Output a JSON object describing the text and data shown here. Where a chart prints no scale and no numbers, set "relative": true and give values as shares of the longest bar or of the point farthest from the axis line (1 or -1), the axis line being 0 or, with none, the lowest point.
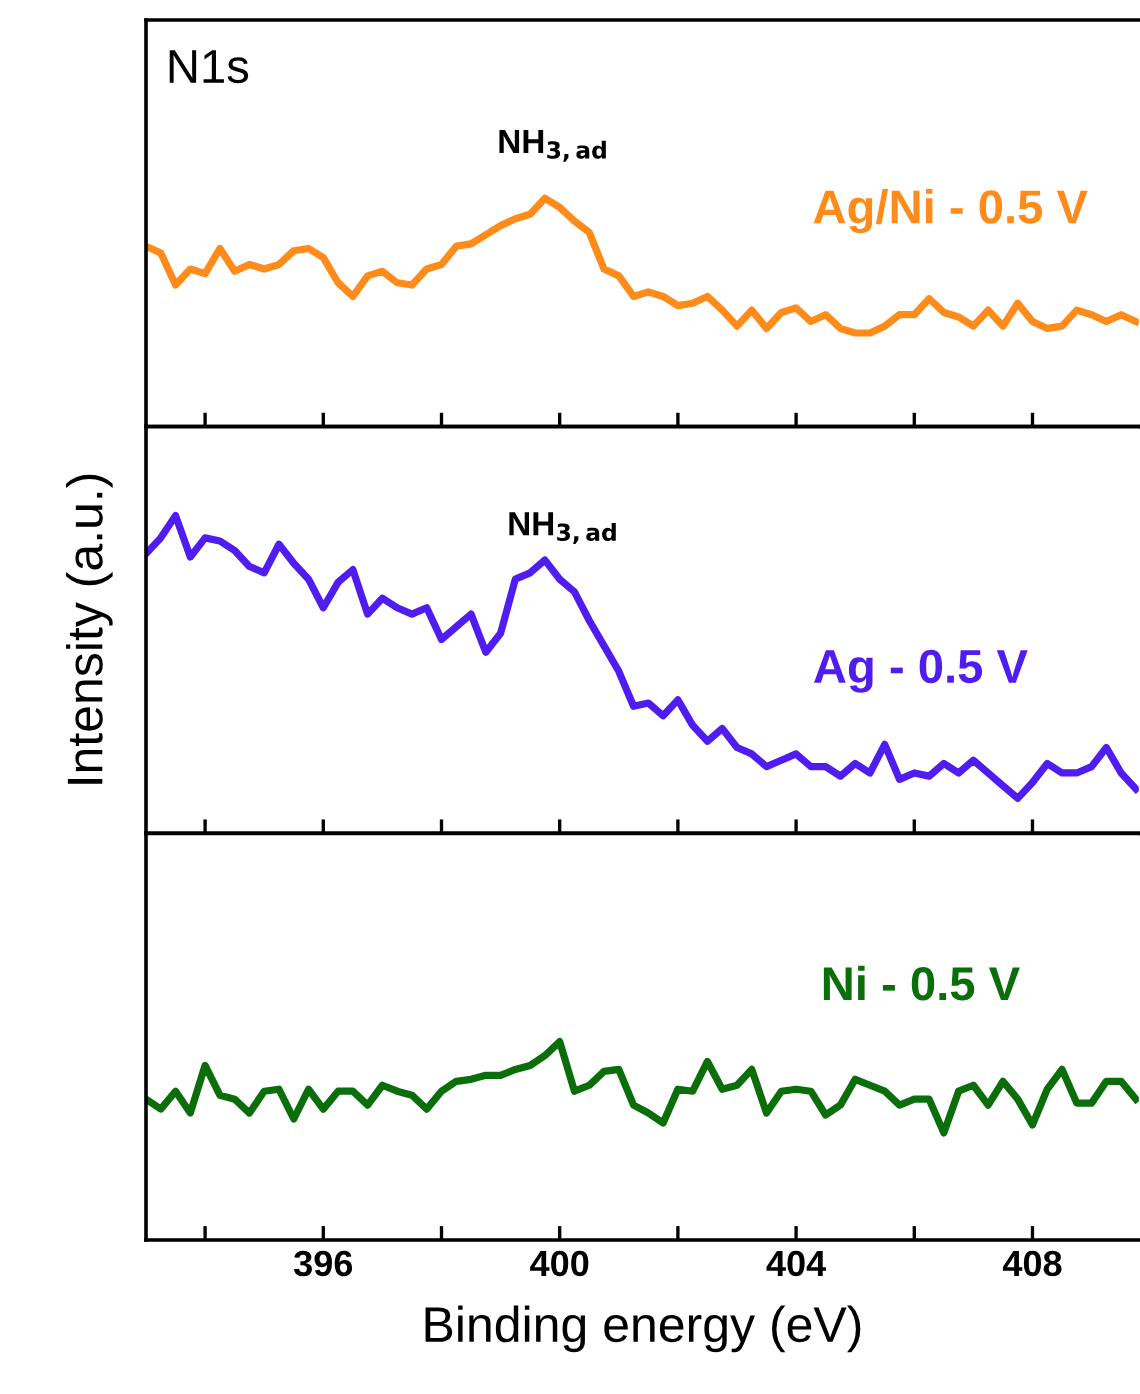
{
  "chart_data": [
    {
      "type": "line",
      "relative": true,
      "tick_labels": false,
      "xlim": [
        393,
        409.8
      ],
      "xticks": [
        {
          "value": 394,
          "label": null
        },
        {
          "value": 396,
          "label": null
        },
        {
          "value": 398,
          "label": null
        },
        {
          "value": 400,
          "label": null
        },
        {
          "value": 402,
          "label": null
        },
        {
          "value": 404,
          "label": null
        },
        {
          "value": 406,
          "label": null
        },
        {
          "value": 408,
          "label": null
        }
      ],
      "annotations": [
        "N1s",
        "NH$_{3,ad}$"
      ],
      "series": [
        {
          "name": "Ag/Ni - 0.5 V",
          "color": "#ff8c1a",
          "x": [
            393,
            393.25,
            393.5,
            393.75,
            394,
            394.25,
            394.5,
            394.75,
            395,
            395.25,
            395.5,
            395.75,
            396,
            396.25,
            396.5,
            396.75,
            397,
            397.25,
            397.5,
            397.75,
            398,
            398.25,
            398.5,
            398.75,
            399,
            399.25,
            399.5,
            399.75,
            400,
            400.25,
            400.5,
            400.75,
            401,
            401.25,
            401.5,
            401.75,
            402,
            402.25,
            402.5,
            402.75,
            403,
            403.25,
            403.5,
            403.75,
            404,
            404.25,
            404.5,
            404.75,
            405,
            405.25,
            405.5,
            405.75,
            406,
            406.25,
            406.5,
            406.75,
            407,
            407.25,
            407.5,
            407.75,
            408,
            408.25,
            408.5,
            408.75,
            409,
            409.25,
            409.5,
            409.75
          ],
          "values": [
            0.79,
            0.76,
            0.62,
            0.69,
            0.67,
            0.78,
            0.68,
            0.71,
            0.69,
            0.71,
            0.77,
            0.78,
            0.74,
            0.63,
            0.57,
            0.66,
            0.68,
            0.63,
            0.62,
            0.69,
            0.71,
            0.79,
            0.8,
            0.84,
            0.88,
            0.91,
            0.93,
            1.0,
            0.96,
            0.9,
            0.85,
            0.69,
            0.66,
            0.57,
            0.59,
            0.57,
            0.53,
            0.54,
            0.57,
            0.51,
            0.44,
            0.51,
            0.43,
            0.5,
            0.52,
            0.46,
            0.49,
            0.43,
            0.41,
            0.41,
            0.44,
            0.49,
            0.49,
            0.56,
            0.5,
            0.48,
            0.44,
            0.51,
            0.44,
            0.54,
            0.46,
            0.43,
            0.44,
            0.51,
            0.49,
            0.46,
            0.49,
            0.46
          ]
        }
      ]
    },
    {
      "type": "line",
      "relative": true,
      "tick_labels": false,
      "xlim": [
        393,
        409.8
      ],
      "xticks": [
        {
          "value": 394,
          "label": null
        },
        {
          "value": 396,
          "label": null
        },
        {
          "value": 398,
          "label": null
        },
        {
          "value": 400,
          "label": null
        },
        {
          "value": 402,
          "label": null
        },
        {
          "value": 404,
          "label": null
        },
        {
          "value": 406,
          "label": null
        },
        {
          "value": 408,
          "label": null
        }
      ],
      "ylabel": "Intensity (a.u.)",
      "annotations": [
        "NH$_{3,ad}$"
      ],
      "series": [
        {
          "name": "Ag - 0.5 V",
          "color": "#4f1df0",
          "x": [
            393,
            393.25,
            393.5,
            393.75,
            394,
            394.25,
            394.5,
            394.75,
            395,
            395.25,
            395.5,
            395.75,
            396,
            396.25,
            396.5,
            396.75,
            397,
            397.25,
            397.5,
            397.75,
            398,
            398.25,
            398.5,
            398.75,
            399,
            399.25,
            399.5,
            399.75,
            400,
            400.25,
            400.5,
            400.75,
            401,
            401.25,
            401.5,
            401.75,
            402,
            402.25,
            402.5,
            402.75,
            403,
            403.25,
            403.5,
            403.75,
            404,
            404.25,
            404.5,
            404.75,
            405,
            405.25,
            405.5,
            405.75,
            406,
            406.25,
            406.5,
            406.75,
            407,
            407.25,
            407.5,
            407.75,
            408,
            408.25,
            408.5,
            408.75,
            409,
            409.25,
            409.5,
            409.75
          ],
          "values": [
            0.88,
            0.93,
            1.0,
            0.87,
            0.93,
            0.92,
            0.89,
            0.84,
            0.82,
            0.91,
            0.85,
            0.8,
            0.71,
            0.79,
            0.83,
            0.69,
            0.74,
            0.71,
            0.69,
            0.71,
            0.61,
            0.65,
            0.69,
            0.57,
            0.63,
            0.8,
            0.82,
            0.86,
            0.8,
            0.76,
            0.67,
            0.59,
            0.51,
            0.4,
            0.41,
            0.37,
            0.42,
            0.34,
            0.29,
            0.33,
            0.27,
            0.25,
            0.21,
            0.23,
            0.25,
            0.21,
            0.21,
            0.18,
            0.22,
            0.19,
            0.28,
            0.17,
            0.19,
            0.18,
            0.22,
            0.19,
            0.23,
            0.19,
            0.15,
            0.11,
            0.16,
            0.22,
            0.19,
            0.19,
            0.21,
            0.27,
            0.19,
            0.14
          ]
        }
      ]
    },
    {
      "type": "line",
      "relative": true,
      "tick_labels": "x",
      "xlim": [
        393,
        409.8
      ],
      "xticks": [
        {
          "value": 394,
          "label": null
        },
        396,
        {
          "value": 398,
          "label": null
        },
        400,
        {
          "value": 402,
          "label": null
        },
        404,
        {
          "value": 406,
          "label": null
        },
        408
      ],
      "xlabel": "Binding energy (eV)",
      "series": [
        {
          "name": "Ni - 0.5 V",
          "color": "#0b6e0b",
          "x": [
            393,
            393.25,
            393.5,
            393.75,
            394,
            394.25,
            394.5,
            394.75,
            395,
            395.25,
            395.5,
            395.75,
            396,
            396.25,
            396.5,
            396.75,
            397,
            397.25,
            397.5,
            397.75,
            398,
            398.25,
            398.5,
            398.75,
            399,
            399.25,
            399.5,
            399.75,
            400,
            400.25,
            400.5,
            400.75,
            401,
            401.25,
            401.5,
            401.75,
            402,
            402.25,
            402.5,
            402.75,
            403,
            403.25,
            403.5,
            403.75,
            404,
            404.25,
            404.5,
            404.75,
            405,
            405.25,
            405.5,
            405.75,
            406,
            406.25,
            406.5,
            406.75,
            407,
            407.25,
            407.5,
            407.75,
            408,
            408.25,
            408.5,
            408.75,
            409,
            409.25,
            409.5,
            409.75
          ],
          "values": [
            0.71,
            0.66,
            0.75,
            0.64,
            0.88,
            0.73,
            0.71,
            0.64,
            0.75,
            0.76,
            0.61,
            0.76,
            0.66,
            0.75,
            0.75,
            0.68,
            0.78,
            0.75,
            0.73,
            0.66,
            0.75,
            0.8,
            0.81,
            0.83,
            0.83,
            0.86,
            0.88,
            0.93,
            1.0,
            0.75,
            0.78,
            0.85,
            0.86,
            0.68,
            0.64,
            0.59,
            0.76,
            0.75,
            0.9,
            0.76,
            0.78,
            0.86,
            0.64,
            0.75,
            0.76,
            0.75,
            0.63,
            0.68,
            0.81,
            0.78,
            0.75,
            0.68,
            0.71,
            0.71,
            0.54,
            0.75,
            0.78,
            0.68,
            0.8,
            0.71,
            0.58,
            0.76,
            0.86,
            0.69,
            0.69,
            0.8,
            0.8,
            0.71
          ]
        }
      ]
    }
  ]
}
